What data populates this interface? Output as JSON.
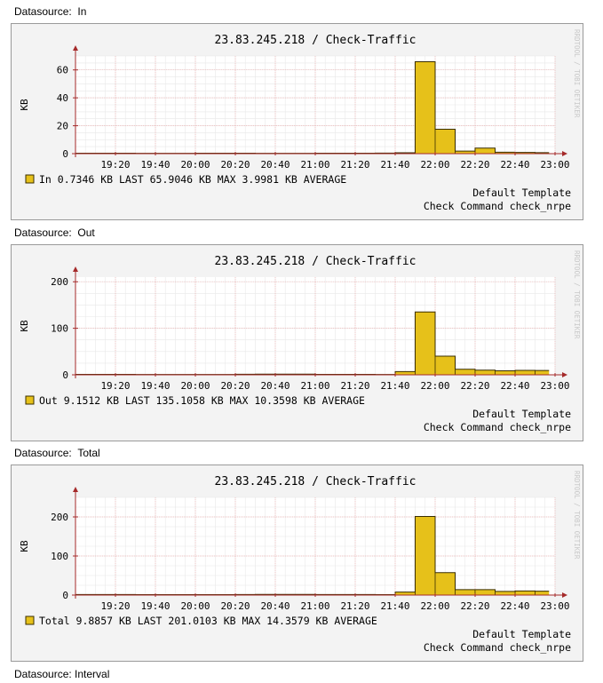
{
  "datasource_prefix": "Datasource:",
  "footer_label": "Datasource:  Interval",
  "colors": {
    "fill": "#e6c11a",
    "stroke": "#3a2e00",
    "grid_minor": "#e8e8e8",
    "grid_major": "#f0b4b4",
    "axis": "#a52a2a",
    "panel_bg": "#f3f3f3",
    "canvas_bg": "#ffffff"
  },
  "watermark": "RRDTOOL / TOBI OETIKER",
  "chart_data": [
    {
      "type": "area",
      "datasource": "In",
      "title": "23.83.245.218 / Check-Traffic",
      "ylabel": "KB",
      "ylim": [
        0,
        70
      ],
      "yticks": [
        0,
        20,
        40,
        60
      ],
      "xlim": [
        "19:00",
        "23:00"
      ],
      "xticks": [
        "19:20",
        "19:40",
        "20:00",
        "20:20",
        "20:40",
        "21:00",
        "21:20",
        "21:40",
        "22:00",
        "22:20",
        "22:40",
        "23:00"
      ],
      "series": [
        {
          "name": "In",
          "values": [
            [
              19.0,
              0.3
            ],
            [
              19.5,
              0.2
            ],
            [
              20.0,
              0.3
            ],
            [
              20.5,
              0.2
            ],
            [
              21.0,
              0.3
            ],
            [
              21.5,
              0.4
            ],
            [
              21.667,
              0.6
            ],
            [
              21.833,
              65.9
            ],
            [
              22.0,
              17.5
            ],
            [
              22.167,
              1.8
            ],
            [
              22.333,
              4.0
            ],
            [
              22.5,
              1.0
            ],
            [
              22.667,
              0.9
            ],
            [
              22.833,
              0.7
            ],
            [
              22.95,
              0.7
            ]
          ]
        }
      ],
      "legend": {
        "name": "In",
        "last": "0.7346 KB LAST",
        "max": "65.9046 KB MAX",
        "avg": "3.9981 KB AVERAGE"
      },
      "template_line": "Default Template",
      "command_line": "Check Command check_nrpe"
    },
    {
      "type": "area",
      "datasource": "Out",
      "title": "23.83.245.218 / Check-Traffic",
      "ylabel": "KB",
      "ylim": [
        0,
        210
      ],
      "yticks": [
        0,
        100,
        200
      ],
      "xlim": [
        "19:00",
        "23:00"
      ],
      "xticks": [
        "19:20",
        "19:40",
        "20:00",
        "20:20",
        "20:40",
        "21:00",
        "21:20",
        "21:40",
        "22:00",
        "22:20",
        "22:40",
        "23:00"
      ],
      "series": [
        {
          "name": "Out",
          "values": [
            [
              19.0,
              1.0
            ],
            [
              19.5,
              0.8
            ],
            [
              20.0,
              0.7
            ],
            [
              20.333,
              1.2
            ],
            [
              20.5,
              1.4
            ],
            [
              21.0,
              1.0
            ],
            [
              21.5,
              0.8
            ],
            [
              21.667,
              7.0
            ],
            [
              21.833,
              135.1
            ],
            [
              22.0,
              40.0
            ],
            [
              22.167,
              12.0
            ],
            [
              22.333,
              10.0
            ],
            [
              22.5,
              8.5
            ],
            [
              22.667,
              9.5
            ],
            [
              22.833,
              9.2
            ],
            [
              22.95,
              9.2
            ]
          ]
        }
      ],
      "legend": {
        "name": "Out",
        "last": "9.1512 KB LAST",
        "max": "135.1058 KB MAX",
        "avg": "10.3598 KB AVERAGE"
      },
      "template_line": "Default Template",
      "command_line": "Check Command check_nrpe"
    },
    {
      "type": "area",
      "datasource": "Total",
      "title": "23.83.245.218 / Check-Traffic",
      "ylabel": "KB",
      "ylim": [
        0,
        250
      ],
      "yticks": [
        0,
        100,
        200
      ],
      "xlim": [
        "19:00",
        "23:00"
      ],
      "xticks": [
        "19:20",
        "19:40",
        "20:00",
        "20:20",
        "20:40",
        "21:00",
        "21:20",
        "21:40",
        "22:00",
        "22:20",
        "22:40",
        "23:00"
      ],
      "series": [
        {
          "name": "Total",
          "values": [
            [
              19.0,
              1.3
            ],
            [
              19.5,
              1.0
            ],
            [
              20.0,
              1.0
            ],
            [
              20.333,
              1.4
            ],
            [
              20.5,
              1.8
            ],
            [
              21.0,
              1.3
            ],
            [
              21.5,
              1.2
            ],
            [
              21.667,
              7.6
            ],
            [
              21.833,
              201.0
            ],
            [
              22.0,
              57.5
            ],
            [
              22.167,
              13.8
            ],
            [
              22.333,
              14.0
            ],
            [
              22.5,
              9.5
            ],
            [
              22.667,
              10.4
            ],
            [
              22.833,
              9.9
            ],
            [
              22.95,
              9.9
            ]
          ]
        }
      ],
      "legend": {
        "name": "Total",
        "last": "9.8857 KB LAST",
        "max": "201.0103 KB MAX",
        "avg": "14.3579 KB AVERAGE"
      },
      "template_line": "Default Template",
      "command_line": "Check Command check_nrpe"
    }
  ]
}
